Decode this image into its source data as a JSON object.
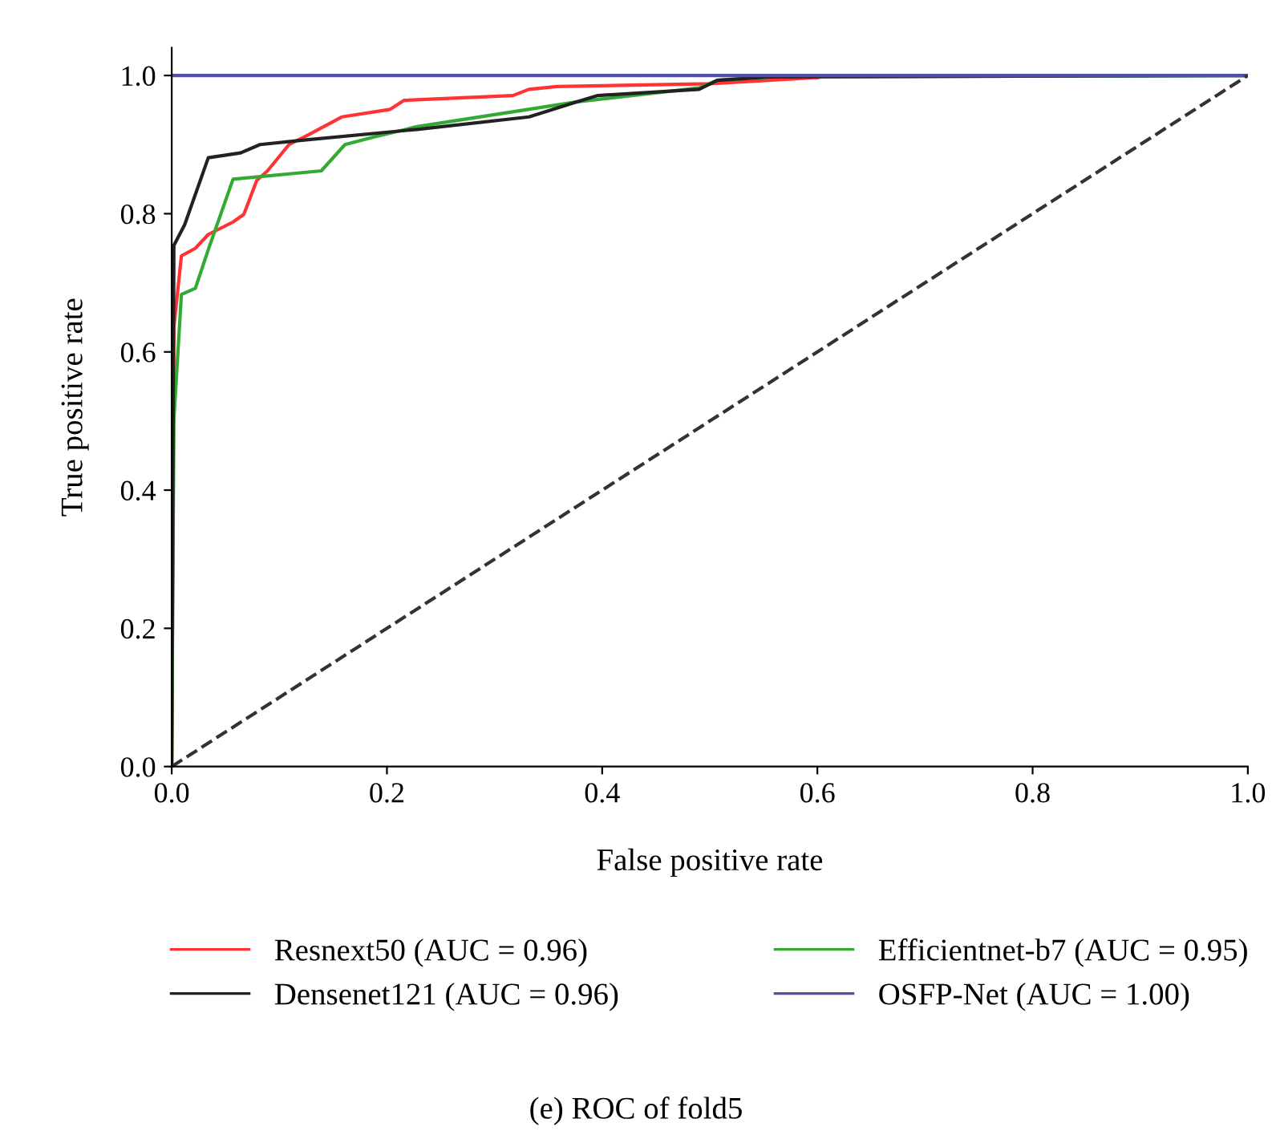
{
  "chart_data": {
    "type": "line",
    "xlabel": "False positive rate",
    "ylabel": "True positive rate",
    "xlim": [
      0,
      1
    ],
    "ylim": [
      0,
      1.04
    ],
    "xticks": [
      {
        "value": 0,
        "label": "0.0"
      },
      0.2,
      0.4,
      0.6,
      0.8,
      {
        "value": 1,
        "label": "1.0"
      }
    ],
    "yticks": [
      {
        "value": 0,
        "label": "0.0"
      },
      0.2,
      0.4,
      0.6,
      0.8,
      {
        "value": 1,
        "label": "1.0"
      }
    ],
    "grid": false,
    "legend": "bottom",
    "marker": "none",
    "annotations": [
      "(e) ROC of fold5"
    ],
    "series": [
      {
        "name": "Resnext50 (AUC = 0.96)",
        "color": "#ff3333",
        "x": [
          0,
          0.002,
          0.009,
          0.022,
          0.034,
          0.057,
          0.067,
          0.079,
          0.089,
          0.109,
          0.128,
          0.158,
          0.203,
          0.216,
          0.317,
          0.332,
          0.358,
          0.5,
          0.6
        ],
        "values": [
          0,
          0.636,
          0.739,
          0.75,
          0.77,
          0.788,
          0.799,
          0.848,
          0.862,
          0.9,
          0.915,
          0.94,
          0.951,
          0.964,
          0.971,
          0.98,
          0.984,
          0.988,
          0.997
        ]
      },
      {
        "name": "Efficientnet-b7 (AUC = 0.95)",
        "color": "#33aa33",
        "x": [
          0,
          0.002,
          0.009,
          0.022,
          0.034,
          0.057,
          0.139,
          0.161,
          0.188,
          0.228,
          0.377,
          0.49,
          0.507,
          0.556,
          1
        ],
        "values": [
          0,
          0.502,
          0.683,
          0.692,
          0.748,
          0.85,
          0.862,
          0.9,
          0.911,
          0.926,
          0.962,
          0.982,
          0.993,
          0.998,
          1
        ]
      },
      {
        "name": "Densenet121 (AUC = 0.96)",
        "color": "#222222",
        "x": [
          0,
          0.002,
          0.012,
          0.034,
          0.064,
          0.082,
          0.119,
          0.228,
          0.332,
          0.377,
          0.396,
          0.49,
          0.507,
          0.556,
          1
        ],
        "values": [
          0,
          0.754,
          0.784,
          0.881,
          0.888,
          0.9,
          0.906,
          0.922,
          0.94,
          0.962,
          0.971,
          0.98,
          0.993,
          0.998,
          1
        ]
      },
      {
        "name": "OSFP-Net (AUC = 1.00)",
        "color": "#5050a8",
        "x": [
          0,
          1
        ],
        "values": [
          1,
          1
        ]
      },
      {
        "color": "#333333",
        "line_style": "dashed",
        "x": [
          0,
          1
        ],
        "values": [
          0,
          1
        ]
      }
    ]
  }
}
